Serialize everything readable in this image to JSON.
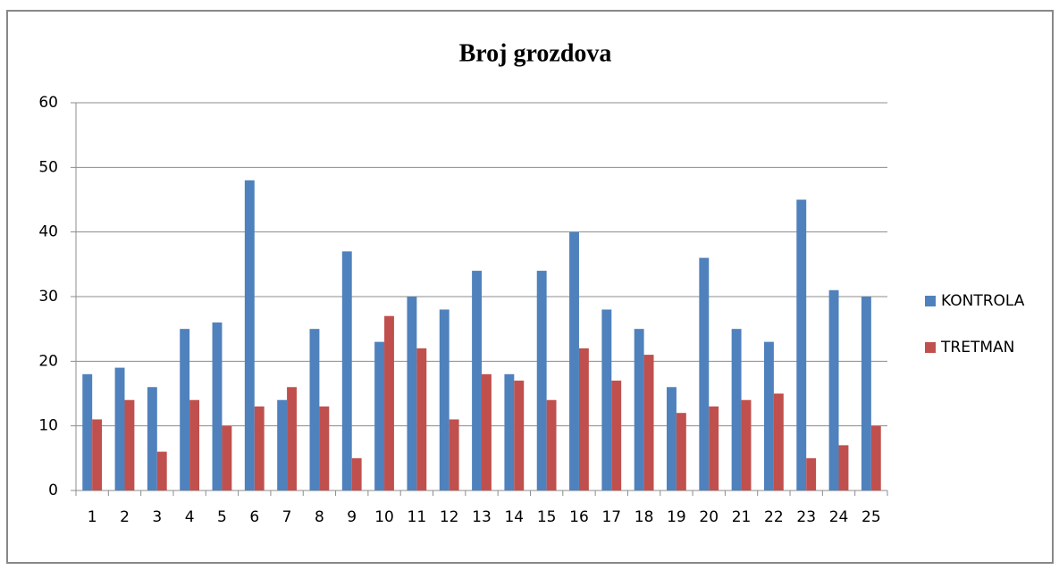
{
  "chart_data": {
    "type": "bar",
    "title": "Broj grozdova",
    "categories": [
      "1",
      "2",
      "3",
      "4",
      "5",
      "6",
      "7",
      "8",
      "9",
      "10",
      "11",
      "12",
      "13",
      "14",
      "15",
      "16",
      "17",
      "18",
      "19",
      "20",
      "21",
      "22",
      "23",
      "24",
      "25"
    ],
    "series": [
      {
        "name": "KONTROLA",
        "color": "#4f81bd",
        "values": [
          18,
          19,
          16,
          25,
          26,
          48,
          14,
          25,
          37,
          23,
          30,
          28,
          34,
          18,
          34,
          40,
          28,
          25,
          16,
          36,
          25,
          23,
          45,
          31,
          30
        ]
      },
      {
        "name": "TRETMAN",
        "color": "#c0504d",
        "values": [
          11,
          14,
          6,
          14,
          10,
          13,
          16,
          13,
          5,
          27,
          22,
          11,
          18,
          17,
          14,
          22,
          17,
          21,
          12,
          13,
          14,
          15,
          5,
          7,
          10
        ]
      }
    ],
    "ylim": [
      0,
      60
    ],
    "yticks": [
      0,
      10,
      20,
      30,
      40,
      50,
      60
    ],
    "grid": true,
    "legend": "right"
  }
}
